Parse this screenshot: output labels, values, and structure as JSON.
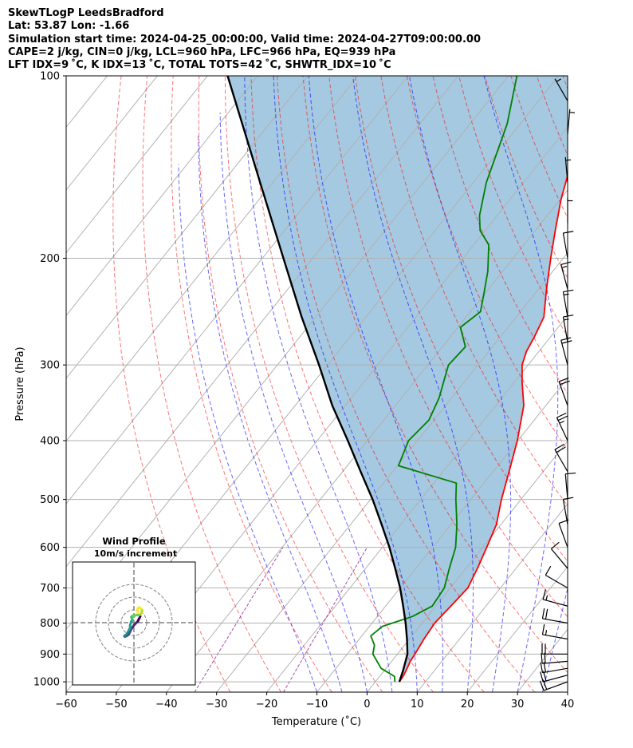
{
  "header": {
    "line1": "SkewTLogP LeedsBradford",
    "line2": "Lat: 53.87   Lon: -1.66",
    "line3": "Simulation start time: 2024-04-25_00:00:00, Valid time: 2024-04-27T09:00:00.00",
    "line4": "CAPE=2 j/kg, CIN=0 j/kg, LCL=960 hPa, LFC=966 hPa, EQ=939 hPa",
    "line5": "LFT IDX=9 ˚C, K IDX=13 ˚C, TOTAL TOTS=42 ˚C, SHWTR_IDX=10 ˚C"
  },
  "chart_data": {
    "type": "line",
    "subtype": "skew-T log-P diagram",
    "xlabel": "Temperature (˚C)",
    "ylabel": "Pressure (hPa)",
    "xlim": [
      -60,
      40
    ],
    "ylim": [
      1040,
      100
    ],
    "xticks": [
      -60,
      -50,
      -40,
      -30,
      -20,
      -10,
      0,
      10,
      20,
      30,
      40
    ],
    "yticks": [
      100,
      200,
      300,
      400,
      500,
      600,
      700,
      800,
      900,
      1000
    ],
    "grid": true,
    "series": [
      {
        "name": "Temperature",
        "color": "#ff0000",
        "points": [
          [
            1000,
            4.8
          ],
          [
            980,
            4.7
          ],
          [
            950,
            4.2
          ],
          [
            925,
            3.7
          ],
          [
            900,
            3.5
          ],
          [
            850,
            2.9
          ],
          [
            800,
            2.5
          ],
          [
            750,
            3.0
          ],
          [
            700,
            3.5
          ],
          [
            650,
            2.3
          ],
          [
            600,
            0.8
          ],
          [
            550,
            -0.9
          ],
          [
            500,
            -3.9
          ],
          [
            450,
            -6.8
          ],
          [
            400,
            -10.1
          ],
          [
            350,
            -14.4
          ],
          [
            320,
            -18.5
          ],
          [
            300,
            -21.2
          ],
          [
            285,
            -22.5
          ],
          [
            270,
            -23.2
          ],
          [
            250,
            -24.5
          ],
          [
            225,
            -28.4
          ],
          [
            200,
            -32.5
          ],
          [
            180,
            -36.0
          ],
          [
            160,
            -39.8
          ],
          [
            145,
            -42.5
          ],
          [
            130,
            -46.5
          ],
          [
            115,
            -50.6
          ],
          [
            105,
            -53.2
          ],
          [
            100,
            -55.1
          ]
        ]
      },
      {
        "name": "Dewpoint",
        "color": "#008000",
        "points": [
          [
            1000,
            3.9
          ],
          [
            980,
            3.0
          ],
          [
            950,
            -1.0
          ],
          [
            900,
            -4.9
          ],
          [
            870,
            -6.0
          ],
          [
            840,
            -8.2
          ],
          [
            810,
            -7.4
          ],
          [
            780,
            -3.0
          ],
          [
            750,
            -0.7
          ],
          [
            700,
            -1.2
          ],
          [
            650,
            -3.3
          ],
          [
            600,
            -5.4
          ],
          [
            550,
            -8.8
          ],
          [
            500,
            -13.0
          ],
          [
            470,
            -15.5
          ],
          [
            440,
            -29.8
          ],
          [
            400,
            -31.8
          ],
          [
            370,
            -31.0
          ],
          [
            340,
            -32.5
          ],
          [
            300,
            -35.9
          ],
          [
            280,
            -35.4
          ],
          [
            260,
            -39.5
          ],
          [
            245,
            -38.0
          ],
          [
            230,
            -40.0
          ],
          [
            210,
            -43.0
          ],
          [
            190,
            -47.0
          ],
          [
            180,
            -51.0
          ],
          [
            170,
            -53.5
          ],
          [
            150,
            -57.4
          ],
          [
            120,
            -62.6
          ],
          [
            100,
            -68.3
          ]
        ]
      },
      {
        "name": "Parcel profile",
        "color": "#000000",
        "points": [
          [
            1000,
            4.8
          ],
          [
            960,
            3.8
          ],
          [
            900,
            2.0
          ],
          [
            850,
            -0.5
          ],
          [
            800,
            -3.3
          ],
          [
            750,
            -6.5
          ],
          [
            700,
            -10.0
          ],
          [
            650,
            -14.1
          ],
          [
            600,
            -18.6
          ],
          [
            550,
            -23.8
          ],
          [
            500,
            -29.6
          ],
          [
            450,
            -36.4
          ],
          [
            400,
            -43.9
          ],
          [
            350,
            -52.6
          ],
          [
            300,
            -61.7
          ],
          [
            250,
            -72.8
          ],
          [
            200,
            -85.8
          ],
          [
            150,
            -102.5
          ],
          [
            100,
            -126.0
          ]
        ]
      }
    ],
    "shaded_region": "CAPE/CIN area between parcel profile and temperature",
    "reference_lines": [
      "dry adiabats (red dashed)",
      "moist adiabats (blue dashed)",
      "mixing ratio lines (purple dashed)",
      "skewed isotherms (gray)"
    ],
    "wind_barbs": {
      "location": "right edge",
      "barbs": [
        {
          "p": 1000,
          "speed_kt": 20,
          "dir_deg": 250
        },
        {
          "p": 975,
          "speed_kt": 20,
          "dir_deg": 255
        },
        {
          "p": 950,
          "speed_kt": 20,
          "dir_deg": 260
        },
        {
          "p": 925,
          "speed_kt": 20,
          "dir_deg": 265
        },
        {
          "p": 900,
          "speed_kt": 20,
          "dir_deg": 270
        },
        {
          "p": 850,
          "speed_kt": 15,
          "dir_deg": 280
        },
        {
          "p": 800,
          "speed_kt": 20,
          "dir_deg": 280
        },
        {
          "p": 750,
          "speed_kt": 15,
          "dir_deg": 285
        },
        {
          "p": 700,
          "speed_kt": 10,
          "dir_deg": 300
        },
        {
          "p": 650,
          "speed_kt": 10,
          "dir_deg": 320
        },
        {
          "p": 600,
          "speed_kt": 10,
          "dir_deg": 340
        },
        {
          "p": 550,
          "speed_kt": 10,
          "dir_deg": 350
        },
        {
          "p": 500,
          "speed_kt": 10,
          "dir_deg": 355
        },
        {
          "p": 450,
          "speed_kt": 20,
          "dir_deg": 330
        },
        {
          "p": 400,
          "speed_kt": 25,
          "dir_deg": 335
        },
        {
          "p": 350,
          "speed_kt": 20,
          "dir_deg": 340
        },
        {
          "p": 300,
          "speed_kt": 20,
          "dir_deg": 345
        },
        {
          "p": 275,
          "speed_kt": 15,
          "dir_deg": 350
        },
        {
          "p": 250,
          "speed_kt": 15,
          "dir_deg": 350
        },
        {
          "p": 225,
          "speed_kt": 15,
          "dir_deg": 345
        },
        {
          "p": 200,
          "speed_kt": 10,
          "dir_deg": 350
        },
        {
          "p": 175,
          "speed_kt": 5,
          "dir_deg": 0
        },
        {
          "p": 150,
          "speed_kt": 5,
          "dir_deg": 355
        },
        {
          "p": 125,
          "speed_kt": 5,
          "dir_deg": 5
        },
        {
          "p": 110,
          "speed_kt": 5,
          "dir_deg": 330
        }
      ]
    },
    "hodograph": {
      "title": "Wind Profile",
      "subtitle": "10m/s increment",
      "rings_ms": [
        10,
        20,
        30
      ],
      "colormap": "viridis",
      "points_uv": [
        [
          5,
          5
        ],
        [
          4,
          3
        ],
        [
          3.5,
          2
        ],
        [
          3,
          1
        ],
        [
          2,
          0
        ],
        [
          0,
          -2
        ],
        [
          -1,
          -3.5
        ],
        [
          -2,
          -5
        ],
        [
          -3,
          -7
        ],
        [
          -4,
          -9
        ],
        [
          -5,
          -10
        ],
        [
          -6,
          -10.5
        ],
        [
          -7,
          -11
        ],
        [
          -7.5,
          -10.5
        ],
        [
          -7,
          -10
        ],
        [
          -6,
          -9.5
        ],
        [
          -5,
          -8
        ],
        [
          -4,
          -6
        ],
        [
          -3,
          -4
        ],
        [
          -3,
          -2
        ],
        [
          -2,
          1
        ],
        [
          -1,
          2
        ],
        [
          -1.5,
          3
        ],
        [
          -2,
          4.5
        ],
        [
          -1,
          5.5
        ],
        [
          0.5,
          5.5
        ],
        [
          2,
          6
        ],
        [
          4,
          6
        ],
        [
          5,
          6.5
        ],
        [
          6,
          7.5
        ],
        [
          6.5,
          9.5
        ],
        [
          5.5,
          11
        ],
        [
          4,
          12
        ],
        [
          3,
          11
        ],
        [
          3,
          8
        ]
      ]
    }
  }
}
